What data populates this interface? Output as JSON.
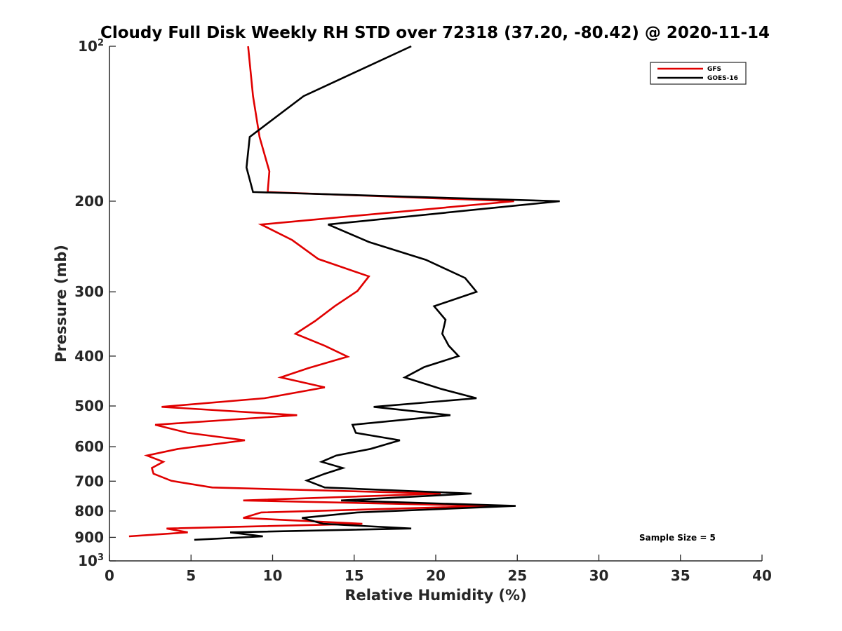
{
  "chart_data": {
    "type": "line",
    "title": "Cloudy Full Disk Weekly RH STD over 72318 (37.20, -80.42) @ 2020-11-14",
    "xlabel": "Relative Humidity (%)",
    "ylabel": "Pressure (mb)",
    "xlim": [
      0,
      40
    ],
    "ylim": [
      100,
      1000
    ],
    "yscale": "log",
    "yreversed": true,
    "x_ticks": [
      "0",
      "5",
      "10",
      "15",
      "20",
      "25",
      "30",
      "35",
      "40"
    ],
    "y_ticks": [
      {
        "value": 100,
        "base": "10",
        "exp": "2"
      },
      {
        "value": 200,
        "label": "200"
      },
      {
        "value": 300,
        "label": "300"
      },
      {
        "value": 400,
        "label": "400"
      },
      {
        "value": 500,
        "label": "500"
      },
      {
        "value": 600,
        "label": "600"
      },
      {
        "value": 700,
        "label": "700"
      },
      {
        "value": 800,
        "label": "800"
      },
      {
        "value": 900,
        "label": "900"
      },
      {
        "value": 1000,
        "base": "10",
        "exp": "3"
      }
    ],
    "legend_position": "top-right",
    "annotation": "Sample Size = 5",
    "series": [
      {
        "name": "GFS",
        "color": "#e00000",
        "points": [
          [
            8.5,
            100
          ],
          [
            8.8,
            125
          ],
          [
            9.2,
            150
          ],
          [
            9.8,
            175
          ],
          [
            9.7,
            192
          ],
          [
            24.8,
            200
          ],
          [
            9.3,
            222
          ],
          [
            11.2,
            238
          ],
          [
            12.8,
            259
          ],
          [
            15.9,
            280
          ],
          [
            15.2,
            299
          ],
          [
            13.8,
            320
          ],
          [
            12.6,
            342
          ],
          [
            11.4,
            362
          ],
          [
            13.2,
            382
          ],
          [
            14.6,
            401
          ],
          [
            12.2,
            422
          ],
          [
            10.5,
            440
          ],
          [
            13.2,
            460
          ],
          [
            9.5,
            483
          ],
          [
            3.2,
            502
          ],
          [
            11.5,
            521
          ],
          [
            2.8,
            544
          ],
          [
            4.8,
            564
          ],
          [
            8.3,
            583
          ],
          [
            4.2,
            606
          ],
          [
            2.3,
            624
          ],
          [
            3.3,
            642
          ],
          [
            2.6,
            660
          ],
          [
            2.7,
            677
          ],
          [
            3.8,
            699
          ],
          [
            6.3,
            720
          ],
          [
            20.3,
            740
          ],
          [
            8.2,
            763
          ],
          [
            23.5,
            782
          ],
          [
            9.3,
            805
          ],
          [
            8.2,
            825
          ],
          [
            15.5,
            847
          ],
          [
            3.5,
            865
          ],
          [
            4.8,
            880
          ],
          [
            1.2,
            896
          ]
        ]
      },
      {
        "name": "GOES-16",
        "color": "#000000",
        "points": [
          [
            18.5,
            100
          ],
          [
            11.9,
            125
          ],
          [
            8.6,
            150
          ],
          [
            8.4,
            172
          ],
          [
            8.8,
            192
          ],
          [
            27.6,
            200
          ],
          [
            13.4,
            222
          ],
          [
            15.9,
            240
          ],
          [
            19.4,
            260
          ],
          [
            21.8,
            282
          ],
          [
            22.5,
            300
          ],
          [
            19.9,
            320
          ],
          [
            20.6,
            340
          ],
          [
            20.4,
            362
          ],
          [
            20.8,
            382
          ],
          [
            21.4,
            400
          ],
          [
            19.3,
            420
          ],
          [
            18.1,
            440
          ],
          [
            20.3,
            463
          ],
          [
            22.5,
            483
          ],
          [
            16.2,
            502
          ],
          [
            20.9,
            521
          ],
          [
            14.9,
            544
          ],
          [
            15.1,
            564
          ],
          [
            17.8,
            583
          ],
          [
            16.0,
            606
          ],
          [
            13.9,
            624
          ],
          [
            13.0,
            642
          ],
          [
            14.3,
            660
          ],
          [
            13.2,
            677
          ],
          [
            12.1,
            698
          ],
          [
            13.2,
            720
          ],
          [
            22.2,
            740
          ],
          [
            14.2,
            763
          ],
          [
            24.9,
            782
          ],
          [
            15.2,
            805
          ],
          [
            11.8,
            825
          ],
          [
            13.1,
            847
          ],
          [
            18.5,
            865
          ],
          [
            7.4,
            880
          ],
          [
            9.4,
            896
          ],
          [
            5.2,
            910
          ]
        ]
      }
    ]
  }
}
